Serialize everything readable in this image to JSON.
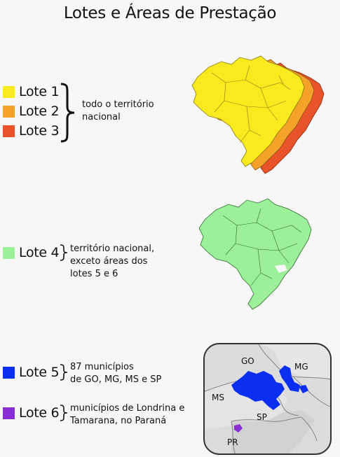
{
  "title": "Lotes e Áreas de Prestação",
  "colors": {
    "lote1": "#f9ea1f",
    "lote2": "#f4a22a",
    "lote3": "#e8532a",
    "lote4": "#9cf09a",
    "lote5": "#0b2ff0",
    "lote6": "#8a2ed6"
  },
  "lots": [
    {
      "label": "Lote 1"
    },
    {
      "label": "Lote 2"
    },
    {
      "label": "Lote 3"
    },
    {
      "label": "Lote 4"
    },
    {
      "label": "Lote 5"
    },
    {
      "label": "Lote 6"
    }
  ],
  "descriptions": {
    "group123": [
      "todo o território",
      "nacional"
    ],
    "lote4": [
      "território nacional,",
      "exceto áreas dos",
      "lotes 5 e 6"
    ],
    "lote5": [
      "87 municípios",
      "de GO, MG, MS e SP"
    ],
    "lote6": [
      "municípios de Londrina e",
      "Tamarana, no Paraná"
    ]
  },
  "map_labels": {
    "go": "GO",
    "mg": "MG",
    "ms": "MS",
    "sp": "SP",
    "pr": "PR"
  }
}
